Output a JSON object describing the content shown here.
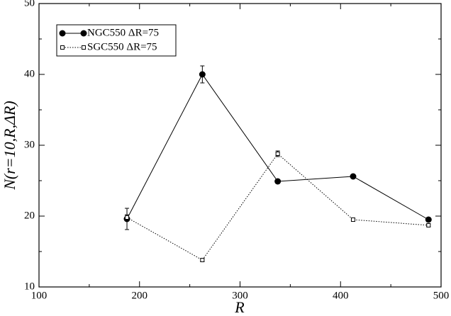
{
  "chart_data": {
    "type": "line",
    "xlabel": "R",
    "ylabel": "N(r=10,R,ΔR)",
    "x": [
      187.5,
      262.5,
      337.5,
      412.5,
      487.5
    ],
    "series": [
      {
        "name": "NGC550 ΔR=75",
        "color": "#000000",
        "marker": "circle",
        "linestyle": "solid",
        "values": [
          19.6,
          40.0,
          24.9,
          25.6,
          19.5
        ],
        "errors": [
          1.5,
          1.2,
          0.3,
          0.3,
          0.3
        ]
      },
      {
        "name": "SGC550 ΔR=75",
        "color": "#000000",
        "marker": "square",
        "linestyle": "dotted",
        "values": [
          19.8,
          13.8,
          28.8,
          19.5,
          18.7
        ],
        "errors": [
          0.4,
          0.2,
          0.4,
          0.2,
          0.2
        ]
      }
    ],
    "xlim": [
      100,
      500
    ],
    "xticks": [
      100,
      200,
      300,
      400,
      500
    ],
    "xminorticks": [
      150,
      250,
      350,
      450
    ],
    "ylim": [
      10,
      50
    ],
    "yticks": [
      10,
      20,
      30,
      40,
      50
    ],
    "yminorticks": [
      15,
      25,
      35,
      45
    ],
    "legend": "upper left"
  }
}
